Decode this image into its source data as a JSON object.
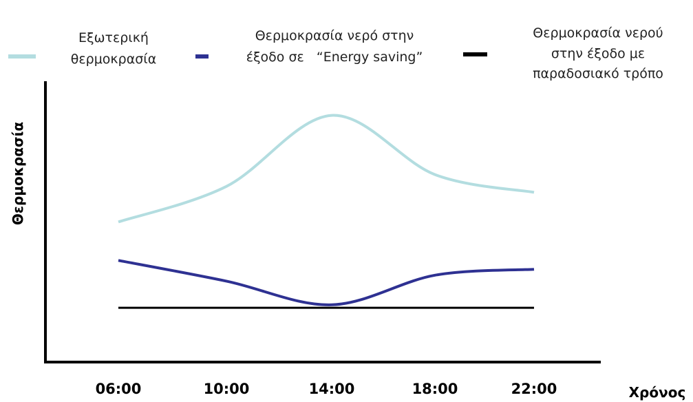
{
  "chart_data": {
    "type": "line",
    "title": "",
    "xlabel": "Χρόνος",
    "ylabel": "Θερμοκρασία",
    "categories": [
      "06:00",
      "10:00",
      "14:00",
      "18:00",
      "22:00"
    ],
    "y_ticks_shown": false,
    "grid": false,
    "legend_position": "top",
    "ylim": [
      0,
      100
    ],
    "series": [
      {
        "name": "Εξωτερική θερμοκρασία",
        "legend_lines": [
          "Εξωτερική",
          "θερμοκρασία"
        ],
        "color": "#b3dde0",
        "values": [
          52,
          64,
          88,
          68,
          62
        ]
      },
      {
        "name": "Θερμοκρασία νερό στην έξοδο σε “Energy saving”",
        "legend_lines": [
          "Θερμοκρασία νερό στην",
          "έξοδο σε   “Energy saving”"
        ],
        "color": "#2e3192",
        "values": [
          39,
          32,
          24,
          34,
          36
        ]
      },
      {
        "name": "Θερμοκρασία νερού στην έξοδο με παραδοσιακό τρόπο",
        "legend_lines": [
          "Θερμοκρασία νερού",
          "στην έξοδο με",
          "παραδοσιακό τρόπο"
        ],
        "color": "#000000",
        "values": [
          23,
          23,
          23,
          23,
          23
        ]
      }
    ]
  }
}
